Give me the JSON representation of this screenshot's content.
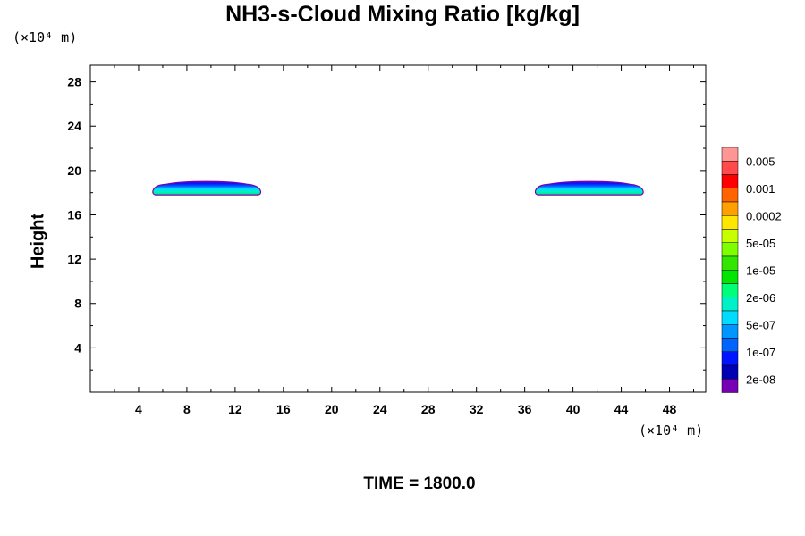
{
  "chart_data": {
    "type": "heatmap",
    "title": "NH3-s-Cloud Mixing Ratio [kg/kg]",
    "xlabel": "",
    "ylabel": "Height",
    "x_unit": "(×10⁴ m)",
    "y_unit": "(×10⁴ m)",
    "xlim": [
      0,
      51
    ],
    "ylim": [
      0,
      29.5
    ],
    "x_ticks": [
      4,
      8,
      12,
      16,
      20,
      24,
      28,
      32,
      36,
      40,
      44,
      48
    ],
    "y_ticks": [
      4,
      8,
      12,
      16,
      20,
      24,
      28
    ],
    "time_label": "TIME = 1800.0",
    "colorbar": {
      "labels": [
        "0.005",
        "0.001",
        "0.0002",
        "5e-05",
        "1e-05",
        "2e-06",
        "5e-07",
        "1e-07",
        "2e-08"
      ],
      "colors_top_to_bottom": [
        "#ff9696",
        "#ff4b4b",
        "#ff0000",
        "#ff6400",
        "#ffa000",
        "#ffe600",
        "#c8ff00",
        "#7dff00",
        "#32e600",
        "#00e600",
        "#00ff78",
        "#00f0c8",
        "#00dcff",
        "#0096ff",
        "#0064ff",
        "#0014ff",
        "#0000b4",
        "#7800b4"
      ]
    },
    "clouds": [
      {
        "x_range": [
          5.0,
          14.3
        ],
        "y_range": [
          17.8,
          19.0
        ]
      },
      {
        "x_range": [
          36.7,
          46.0
        ],
        "y_range": [
          17.8,
          19.0
        ]
      }
    ]
  }
}
